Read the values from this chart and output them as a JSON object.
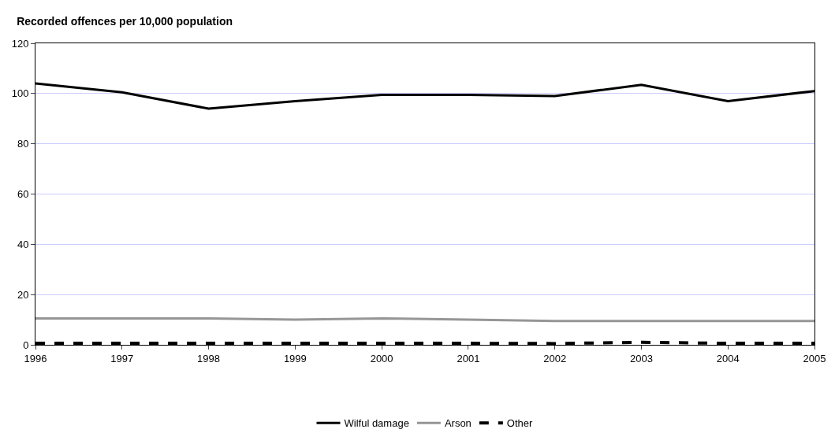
{
  "chart_data": {
    "type": "line",
    "title": "Recorded offences per 10,000 population",
    "x": [
      1996,
      1997,
      1998,
      1999,
      2000,
      2001,
      2002,
      2003,
      2004,
      2005
    ],
    "series": [
      {
        "name": "Wilful damage",
        "color": "#000000",
        "values": [
          104,
          100.5,
          94,
          97,
          99.5,
          99.5,
          99,
          103.5,
          97,
          101
        ],
        "line_style": "solid"
      },
      {
        "name": "Arson",
        "color": "#969696",
        "values": [
          10.5,
          10.5,
          10.5,
          10,
          10.5,
          10,
          9.5,
          9.5,
          9.5,
          9.5
        ],
        "line_style": "solid"
      },
      {
        "name": "Other",
        "color": "#000000",
        "values": [
          0.6,
          0.6,
          0.6,
          0.6,
          0.6,
          0.6,
          0.5,
          1,
          0.6,
          0.6
        ],
        "line_style": "dashed"
      }
    ],
    "xlim": [
      1996,
      2005
    ],
    "xticks": [
      1996,
      1997,
      1998,
      1999,
      2000,
      2001,
      2002,
      2003,
      2004,
      2005
    ],
    "ylim": [
      0,
      120
    ],
    "yticks": [
      0,
      20,
      40,
      60,
      80,
      100,
      120
    ],
    "grid": "y",
    "legend": "bottom",
    "marker": "none"
  }
}
